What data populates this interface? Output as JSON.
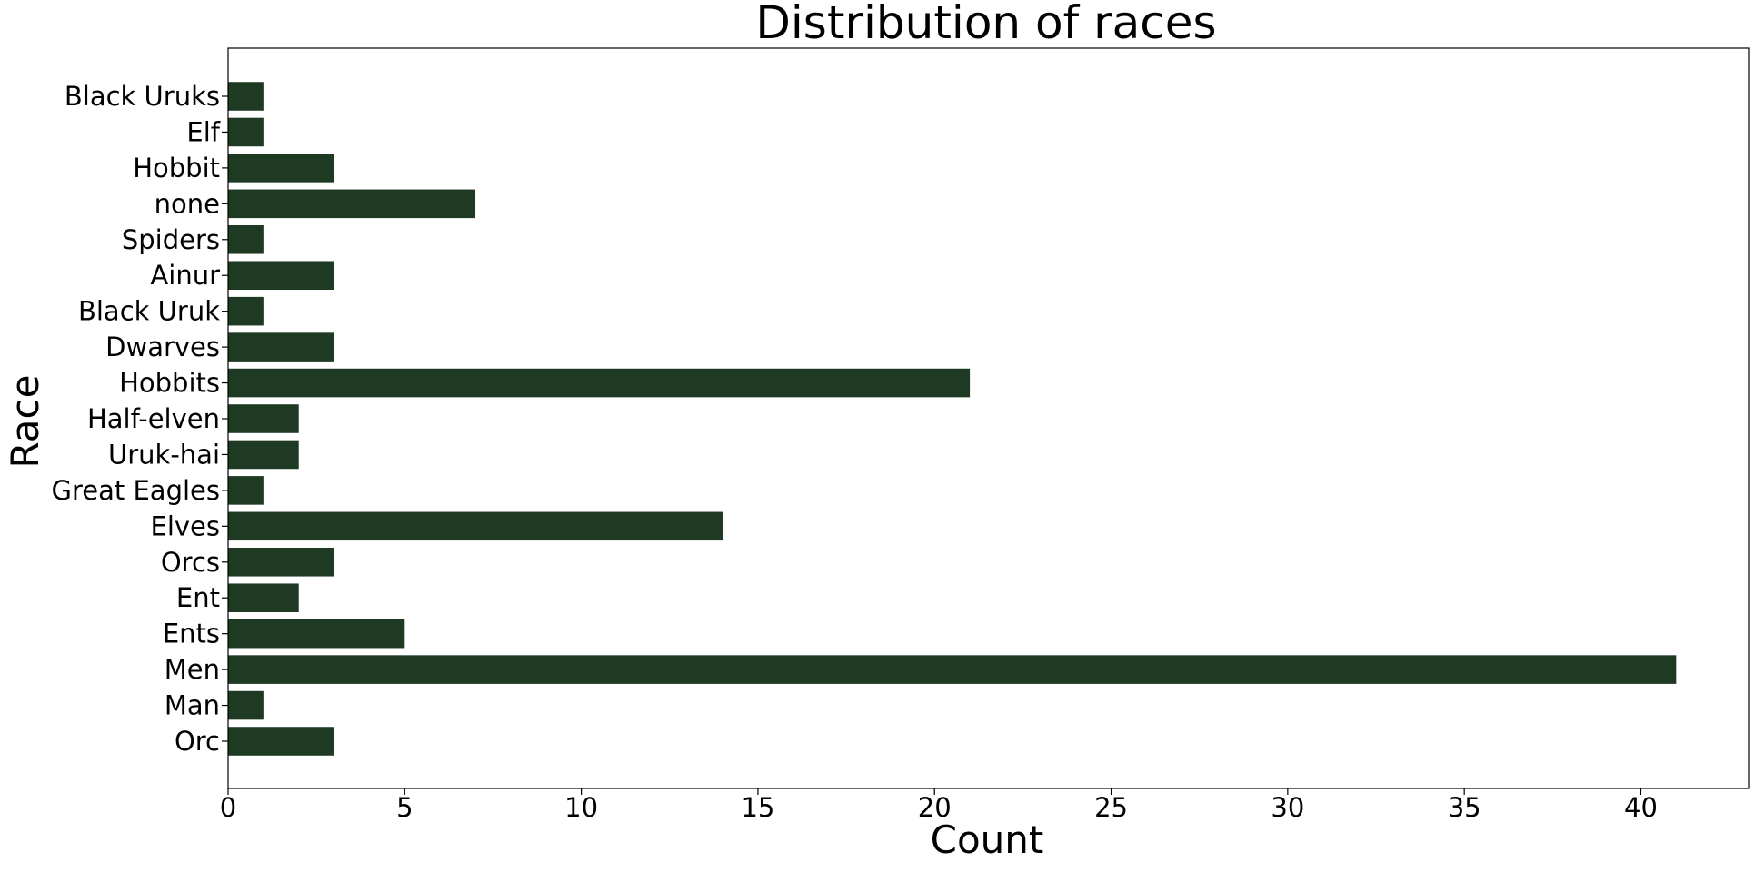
{
  "chart_data": {
    "type": "bar",
    "orientation": "horizontal",
    "title": "Distribution of races",
    "xlabel": "Count",
    "ylabel": "Race",
    "categories": [
      "Black Uruks",
      "Elf",
      "Hobbit",
      "none",
      "Spiders",
      "Ainur",
      "Black Uruk",
      "Dwarves",
      "Hobbits",
      "Half-elven",
      "Uruk-hai",
      "Great Eagles",
      "Elves",
      "Orcs",
      "Ent",
      "Ents",
      "Men",
      "Man",
      "Orc"
    ],
    "values": [
      1,
      1,
      3,
      7,
      1,
      3,
      1,
      3,
      21,
      2,
      2,
      1,
      14,
      3,
      2,
      5,
      41,
      1,
      3
    ],
    "xlim": [
      0,
      43.05
    ],
    "xticks": [
      0,
      5,
      10,
      15,
      20,
      25,
      30,
      35,
      40
    ],
    "bar_color": "#1f3a23",
    "grid": false,
    "legend": "none"
  }
}
